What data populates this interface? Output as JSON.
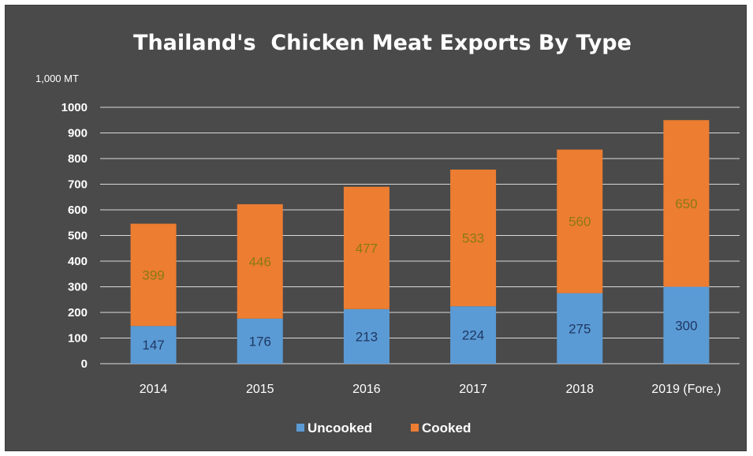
{
  "chart_data": {
    "type": "bar",
    "stacked": true,
    "title": "Thailand's  Chicken Meat Exports By Type",
    "unit_label": "1,000 MT",
    "categories": [
      "2014",
      "2015",
      "2016",
      "2017",
      "2018",
      "2019 (Fore.)"
    ],
    "series": [
      {
        "name": "Uncooked",
        "color": "#5b9bd5",
        "values": [
          147,
          176,
          213,
          224,
          275,
          300
        ]
      },
      {
        "name": "Cooked",
        "color": "#ed7d31",
        "values": [
          399,
          446,
          477,
          533,
          560,
          650
        ]
      }
    ],
    "ylim": [
      0,
      1000
    ],
    "yticks": [
      0,
      100,
      200,
      300,
      400,
      500,
      600,
      700,
      800,
      900,
      1000
    ],
    "grid": true,
    "legend_position": "bottom",
    "background_color": "#4a4a4a"
  }
}
